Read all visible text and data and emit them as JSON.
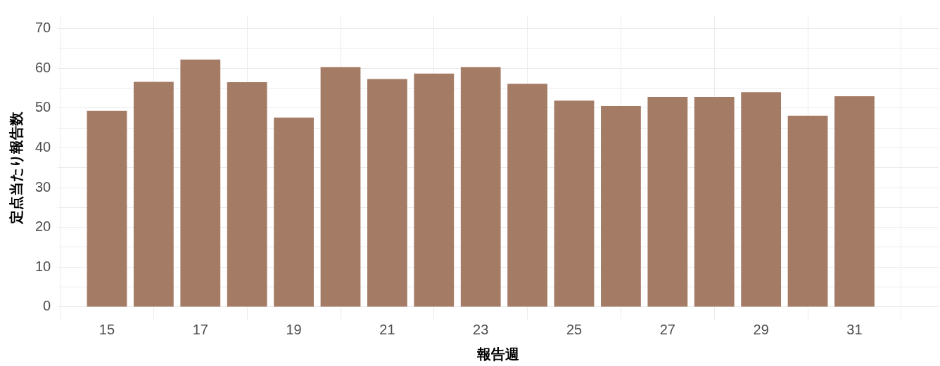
{
  "chart_data": {
    "type": "bar",
    "xlabel": "報告週",
    "ylabel": "定点当たり報告数",
    "x": [
      15,
      16,
      17,
      18,
      19,
      20,
      21,
      22,
      23,
      24,
      25,
      26,
      27,
      28,
      29,
      30,
      31
    ],
    "values": [
      49.3,
      56.6,
      62.2,
      56.5,
      47.6,
      60.3,
      57.3,
      58.7,
      60.3,
      56.1,
      51.9,
      50.5,
      52.8,
      52.8,
      54.0,
      48.1,
      53.0
    ],
    "color": "#a47b65",
    "xlim": [
      13.95,
      32.8
    ],
    "xticks": [
      15,
      17,
      19,
      21,
      23,
      25,
      27,
      29,
      31
    ],
    "ylim": [
      -3.2,
      73.3
    ],
    "yticks": [
      0,
      {
        "value": 5,
        "label": null
      },
      10,
      {
        "value": 15,
        "label": null
      },
      20,
      {
        "value": 25,
        "label": null
      },
      30,
      {
        "value": 35,
        "label": null
      },
      40,
      {
        "value": 45,
        "label": null
      },
      50,
      {
        "value": 55,
        "label": null
      },
      60,
      {
        "value": 65,
        "label": null
      },
      70
    ],
    "grid": true
  }
}
